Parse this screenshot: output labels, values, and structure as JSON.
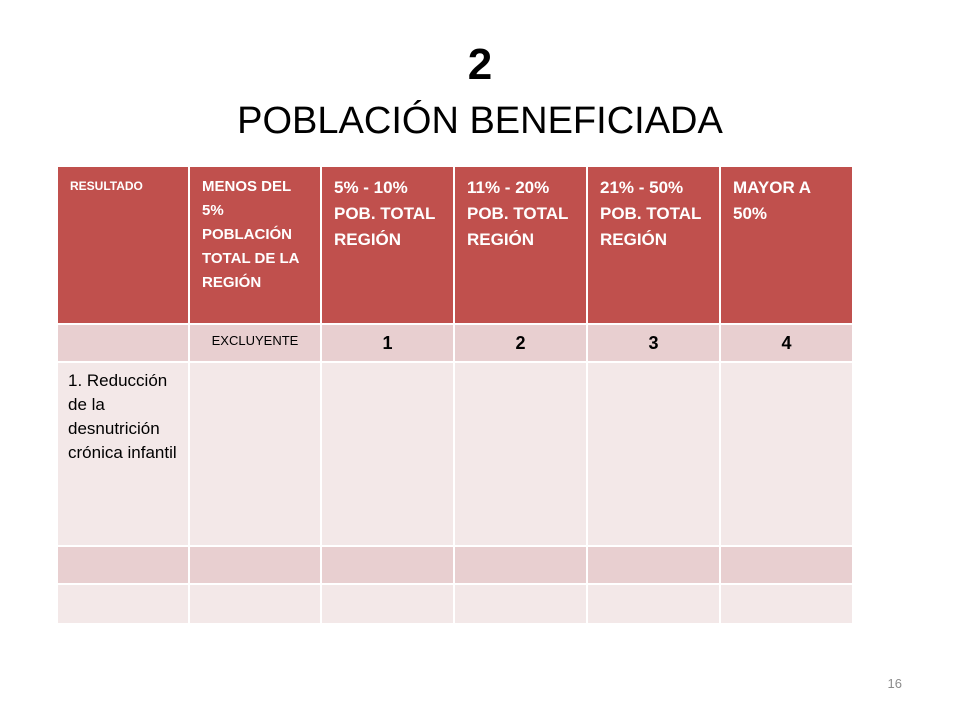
{
  "title": {
    "number": "2",
    "text": "POBLACIÓN BENEFICIADA"
  },
  "table": {
    "headers": [
      "RESULTADO",
      "MENOS DEL 5% POBLACIÓN TOTAL  DE LA REGIÓN",
      "5% - 10% POB. TOTAL REGIÓN",
      "11% - 20% POB. TOTAL REGIÓN",
      "21% - 50% POB. TOTAL REGIÓN",
      "MAYOR A 50%"
    ],
    "levels": [
      "",
      "EXCLUYENTE",
      "1",
      "2",
      "3",
      "4"
    ],
    "rows": [
      [
        "1. Reducción de la desnutrición crónica infantil",
        "",
        "",
        "",
        "",
        ""
      ],
      [
        "",
        "",
        "",
        "",
        "",
        ""
      ],
      [
        "",
        "",
        "",
        "",
        "",
        ""
      ]
    ]
  },
  "page_number": "16"
}
